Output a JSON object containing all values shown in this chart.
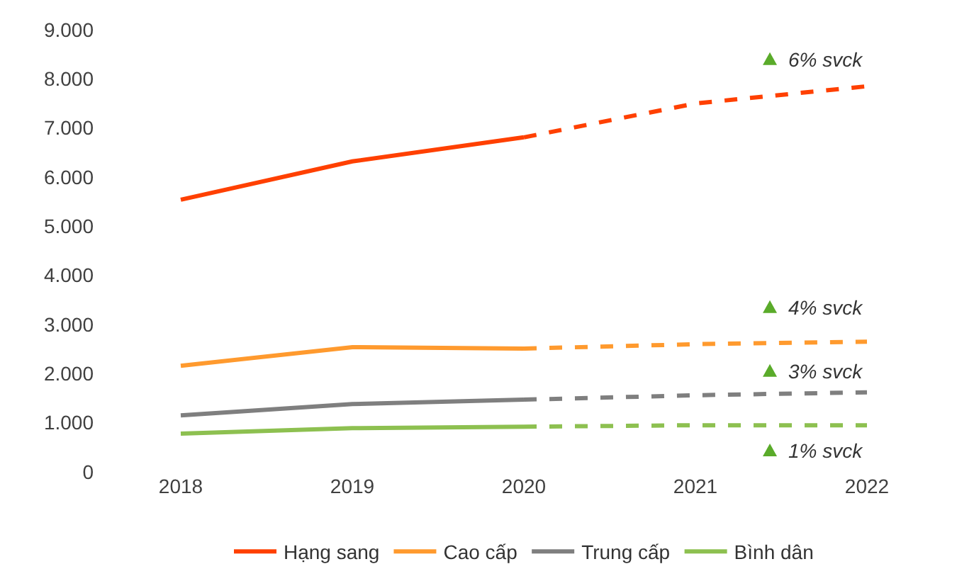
{
  "chart_data": {
    "type": "line",
    "categories": [
      "2018",
      "2019",
      "2020",
      "2021",
      "2022"
    ],
    "series": [
      {
        "name": "Hạng sang",
        "color": "#ff4000",
        "line_style": "solid",
        "values": [
          5540,
          6320,
          6810,
          null,
          null
        ]
      },
      {
        "name": "Cao cấp",
        "color": "#ff9a2e",
        "line_style": "solid",
        "values": [
          2160,
          2540,
          2510,
          null,
          null
        ]
      },
      {
        "name": "Trung cấp",
        "color": "#7f7f7f",
        "line_style": "solid",
        "values": [
          1150,
          1380,
          1470,
          null,
          null
        ]
      },
      {
        "name": "Bình dân",
        "color": "#8dc050",
        "line_style": "solid",
        "values": [
          780,
          890,
          920,
          null,
          null
        ]
      },
      {
        "color": "#ff4000",
        "line_style": "dashed",
        "values": [
          null,
          null,
          6810,
          7500,
          7850
        ]
      },
      {
        "color": "#ff9a2e",
        "line_style": "dashed",
        "values": [
          null,
          null,
          2510,
          2600,
          2650
        ]
      },
      {
        "color": "#7f7f7f",
        "line_style": "dashed",
        "values": [
          null,
          null,
          1470,
          1560,
          1620
        ]
      },
      {
        "color": "#8dc050",
        "line_style": "dashed",
        "values": [
          null,
          null,
          920,
          950,
          950
        ]
      }
    ],
    "ylim": [
      0,
      9000
    ],
    "yticks": [
      0,
      {
        "value": 1000,
        "label": "1.000"
      },
      {
        "value": 2000,
        "label": "2.000"
      },
      {
        "value": 3000,
        "label": "3.000"
      },
      {
        "value": 4000,
        "label": "4.000"
      },
      {
        "value": 5000,
        "label": "5.000"
      },
      {
        "value": 6000,
        "label": "6.000"
      },
      {
        "value": 7000,
        "label": "7.000"
      },
      {
        "value": 8000,
        "label": "8.000"
      },
      {
        "value": 9000,
        "label": "9.000"
      }
    ],
    "grid": false,
    "legend": "bottom",
    "marker": "none",
    "annotations": [
      "6% svck",
      "4% svck",
      "3% svck",
      "1% svck"
    ]
  }
}
